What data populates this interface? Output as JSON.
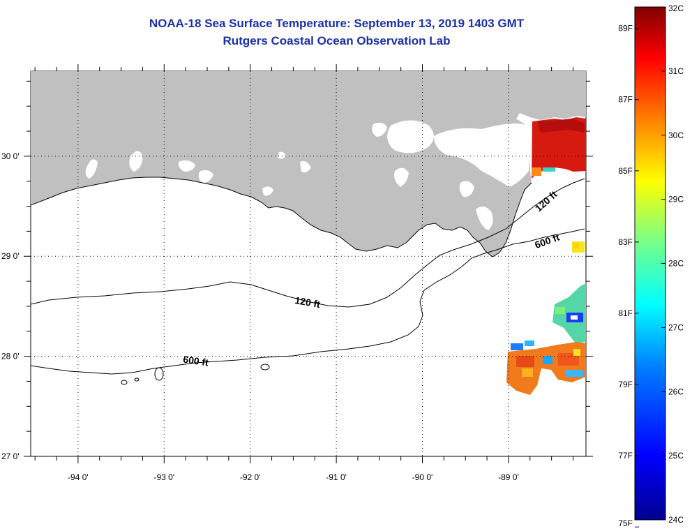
{
  "title": "NOAA-18 Sea Surface Temperature:  September 13, 2019 1403 GMT",
  "subtitle": "Rutgers Coastal Ocean Observation Lab",
  "map": {
    "lat_labels": [
      "30 0'",
      "29 0'",
      "28 0'",
      "27 0'"
    ],
    "lon_labels": [
      "-94 0'",
      "-93 0'",
      "-92 0'",
      "-91 0'",
      "-90 0'",
      "-89 0'"
    ],
    "lat_range": [
      27.0,
      30.85
    ],
    "lon_range": [
      -94.55,
      -88.1
    ],
    "contour_labels": {
      "c120_west": "120 ft",
      "c120_east": "120 ft",
      "c600_west": "600 ft",
      "c600_east": "600 ft"
    },
    "colors": {
      "land": "#c0c0c0",
      "contour": "#000000",
      "grid": "#000000"
    }
  },
  "colorbar": {
    "celsius_labels": [
      "32C",
      "31C",
      "30C",
      "29C",
      "28C",
      "27C",
      "26C",
      "25C",
      "24C"
    ],
    "fahrenheit_labels": [
      "89F",
      "87F",
      "85F",
      "83F",
      "81F",
      "79F",
      "77F",
      "75F"
    ],
    "celsius_range": [
      24,
      32
    ],
    "colors": [
      "#00008f",
      "#0000ff",
      "#0080ff",
      "#00ffff",
      "#80ff80",
      "#ffff00",
      "#ff8000",
      "#ff0000",
      "#800000"
    ]
  }
}
